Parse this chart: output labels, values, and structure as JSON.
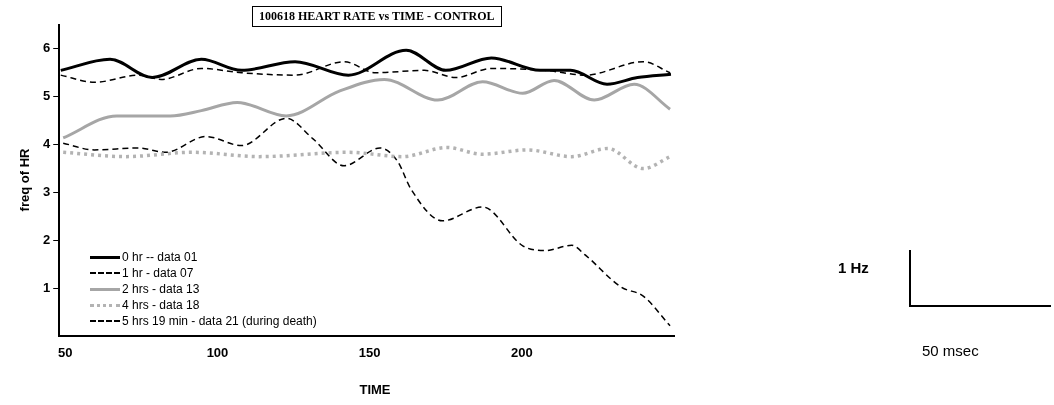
{
  "chart_data": {
    "type": "line",
    "title": "100618 HEART RATE vs TIME - CONTROL",
    "xlabel": "TIME",
    "ylabel": "freq of HR",
    "xlim": [
      48,
      250
    ],
    "xticks": [
      50,
      100,
      150,
      200
    ],
    "ylim": [
      0,
      6.5
    ],
    "yticks": [
      1,
      2,
      3,
      4,
      5,
      6
    ],
    "grid": false,
    "legend": "bottom left",
    "marker": "none",
    "annotations": [
      "1 Hz",
      "50 msec"
    ],
    "series": [
      {
        "name": "0 hr -- data 01",
        "color": "#000000",
        "line_style": "solid",
        "x": [
          48.5,
          64.7,
          78.6,
          94.7,
          107.9,
          125.5,
          143,
          162,
          175,
          190,
          206,
          216,
          228,
          238,
          249
        ],
        "values": [
          5.55,
          5.78,
          5.4,
          5.78,
          5.55,
          5.73,
          5.45,
          5.97,
          5.55,
          5.81,
          5.55,
          5.55,
          5.26,
          5.4,
          5.47
        ]
      },
      {
        "name": "1 hr  - data 07",
        "color": "#000000",
        "line_style": "dashed",
        "x": [
          48.5,
          59.5,
          74.2,
          81.5,
          94.7,
          107.9,
          125.5,
          141.6,
          151.9,
          168,
          178.3,
          190,
          207.6,
          220.8,
          239.9,
          248.7
        ],
        "values": [
          5.45,
          5.3,
          5.45,
          5.36,
          5.59,
          5.5,
          5.45,
          5.73,
          5.5,
          5.55,
          5.4,
          5.59,
          5.55,
          5.45,
          5.73,
          5.5
        ]
      },
      {
        "name": "2 hrs - data 13",
        "color": "#a6a6a6",
        "line_style": "solid",
        "x": [
          49.3,
          66.9,
          84.5,
          94.7,
          106.5,
          122.6,
          140.2,
          154.8,
          172.4,
          187.1,
          200.3,
          210.6,
          223.8,
          236.9,
          248.7
        ],
        "values": [
          4.14,
          4.6,
          4.6,
          4.71,
          4.88,
          4.6,
          5.12,
          5.36,
          4.93,
          5.31,
          5.07,
          5.34,
          4.93,
          5.26,
          4.74
        ]
      },
      {
        "name": "4 hrs - data 18",
        "color": "#b3b3b3",
        "line_style": "dotted",
        "x": [
          49.3,
          69.8,
          91.8,
          113.8,
          143.1,
          160.7,
          175.4,
          187.1,
          201.8,
          216.4,
          228.2,
          239.9,
          248.7
        ],
        "values": [
          3.84,
          3.75,
          3.84,
          3.75,
          3.84,
          3.75,
          3.94,
          3.8,
          3.89,
          3.75,
          3.92,
          3.5,
          3.75
        ]
      },
      {
        "name": "5 hrs 19 min - data 21 (during death)",
        "color": "#000000",
        "line_style": "dashed",
        "x": [
          49.3,
          59.5,
          74.2,
          83,
          96.2,
          107.9,
          122.6,
          131.4,
          141.6,
          153.4,
          159.2,
          163.6,
          173.9,
          187.1,
          200.3,
          207.6,
          216.4,
          220.8,
          232.6,
          239.9,
          248.7
        ],
        "values": [
          4.03,
          3.89,
          3.93,
          3.84,
          4.17,
          3.98,
          4.55,
          4.12,
          3.56,
          3.93,
          3.65,
          3.07,
          2.41,
          2.7,
          1.89,
          1.79,
          1.9,
          1.7,
          1.03,
          0.84,
          0.22
        ]
      }
    ]
  }
}
